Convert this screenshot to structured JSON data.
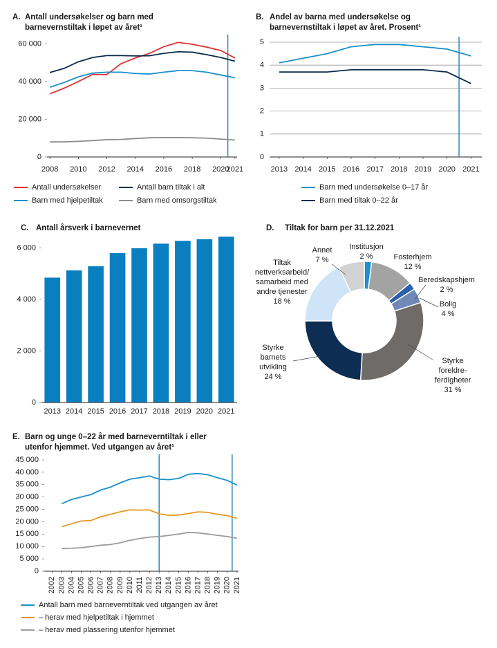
{
  "chart_data": [
    {
      "type": "line",
      "panel": "A.",
      "title": [
        "Antall undersøkelser og barn med",
        "barnevernstiltak i løpet av året¹"
      ],
      "x": [
        2008,
        2009,
        2010,
        2011,
        2012,
        2013,
        2014,
        2015,
        2016,
        2017,
        2018,
        2019,
        2020,
        2021
      ],
      "xlim": [
        2007.8,
        2021.15
      ],
      "xticks": [
        2008,
        2010,
        2012,
        2014,
        2016,
        2018,
        2020,
        2021
      ],
      "ylim": [
        0,
        62000
      ],
      "yticks": [
        0,
        {
          "value": 20000,
          "label": "20 000"
        },
        {
          "value": 40000,
          "label": "40 000"
        },
        {
          "value": 60000,
          "label": "60 000"
        }
      ],
      "grid": false,
      "vlines": [
        2020.5
      ],
      "vline_color": "#1f7fb5",
      "series": [
        {
          "name": "Antall undersøkelser",
          "color": "#e03131",
          "values": [
            33500,
            36500,
            40000,
            43800,
            43700,
            49500,
            52500,
            55000,
            58500,
            60800,
            59800,
            58300,
            56500,
            52500
          ]
        },
        {
          "name": "Antall barn tiltak i alt",
          "color": "#0b2a4a",
          "values": [
            44800,
            47000,
            50500,
            52800,
            53800,
            53800,
            53600,
            53700,
            55000,
            55800,
            55600,
            54300,
            52800,
            50800
          ]
        },
        {
          "name": "Barn med hjelpetiltak",
          "color": "#1a8fc9",
          "values": [
            37000,
            39500,
            42500,
            44500,
            45000,
            45000,
            44300,
            44000,
            45000,
            45800,
            45800,
            45000,
            43500,
            42000
          ]
        },
        {
          "name": "Barn med omsorgstiltak",
          "color": "#8c8c8c",
          "values": [
            8000,
            8000,
            8300,
            8700,
            9200,
            9300,
            9800,
            10200,
            10300,
            10300,
            10200,
            10000,
            9500,
            9000
          ]
        }
      ]
    },
    {
      "type": "line",
      "panel": "B.",
      "title": [
        "Andel av barna med undersøkelse og",
        "barnevernstiltak i løpet av året. Prosent¹"
      ],
      "x": [
        2013,
        2014,
        2015,
        2016,
        2017,
        2018,
        2019,
        2020,
        2021
      ],
      "xlim": [
        2012.6,
        2021.45
      ],
      "xticks": [
        2013,
        2014,
        2015,
        2016,
        2017,
        2018,
        2019,
        2020,
        2021
      ],
      "ylim": [
        0,
        5
      ],
      "yticks": [
        0,
        1,
        2,
        3,
        4,
        5
      ],
      "grid": true,
      "vlines": [
        2020.5
      ],
      "vline_color": "#1f7fb5",
      "series": [
        {
          "name": "Barn med undersøkelse 0–17 år",
          "color": "#1a8fc9",
          "values": [
            4.1,
            4.3,
            4.5,
            4.8,
            4.9,
            4.9,
            4.8,
            4.7,
            4.4
          ]
        },
        {
          "name": "Barn med tiltak 0–22 år",
          "color": "#0b2a4a",
          "values": [
            3.7,
            3.7,
            3.7,
            3.8,
            3.8,
            3.8,
            3.8,
            3.7,
            3.2
          ]
        }
      ]
    },
    {
      "type": "bar",
      "panel": "C.",
      "title": [
        "Antall årsverk i barnevernet"
      ],
      "categories": [
        "2013",
        "2014",
        "2015",
        "2016",
        "2017",
        "2018",
        "2019",
        "2020",
        "2021"
      ],
      "values": [
        4850,
        5130,
        5290,
        5800,
        5990,
        6170,
        6280,
        6340,
        6440
      ],
      "color": "#0a7fc0",
      "ylim": [
        0,
        6500
      ],
      "yticks": [
        0,
        {
          "value": 2000,
          "label": "2 000"
        },
        {
          "value": 4000,
          "label": "4 000"
        },
        {
          "value": 6000,
          "label": "6 000"
        }
      ],
      "grid": false
    },
    {
      "type": "donut",
      "panel": "D.",
      "title": [
        "Tiltak for barn per 31.12.2021"
      ],
      "categories": [
        [
          "Institusjon"
        ],
        [
          "Fosterhjem"
        ],
        [
          "Beredskapshjem"
        ],
        [
          "Bolig"
        ],
        [
          "Styrke",
          "foreldre-",
          "ferdigheter"
        ],
        [
          "Styrke",
          "barnets",
          "utvikling"
        ],
        [
          "Tiltak",
          "nettverksarbeid/",
          "samarbeid med",
          "andre tjenester"
        ],
        [
          "Annet"
        ]
      ],
      "values": [
        2,
        12,
        2,
        4,
        31,
        24,
        18,
        7
      ],
      "value_labels": [
        "2 %",
        "12 %",
        "2 %",
        "4 %",
        "31 %",
        "24 %",
        "18 %",
        "7 %"
      ],
      "colors": [
        "#1f8fd0",
        "#a3a3a3",
        "#2a5fae",
        "#7088b8",
        "#6f6b68",
        "#0d2d52",
        "#cfe5f7",
        "#d2d2d2"
      ]
    },
    {
      "type": "line",
      "panel": "E.",
      "title": [
        "Barn og unge 0–22 år med barneverntiltak i eller",
        "utenfor hjemmet. Ved utgangen av året¹"
      ],
      "x": [
        2002,
        2003,
        2004,
        2005,
        2006,
        2007,
        2008,
        2009,
        2010,
        2011,
        2012,
        2013,
        2014,
        2015,
        2016,
        2017,
        2018,
        2019,
        2020,
        2021
      ],
      "xlim": [
        2001.2,
        2021.15
      ],
      "xticks": [
        2002,
        2003,
        2004,
        2005,
        2006,
        2007,
        2008,
        2009,
        2010,
        2011,
        2012,
        2013,
        2014,
        2015,
        2016,
        2017,
        2018,
        2019,
        2020,
        2021
      ],
      "ylim": [
        0,
        45000
      ],
      "yticks": [
        0,
        {
          "value": 5000,
          "label": "5 000"
        },
        {
          "value": 10000,
          "label": "10 000"
        },
        {
          "value": 15000,
          "label": "15 000"
        },
        {
          "value": 20000,
          "label": "20 000"
        },
        {
          "value": 25000,
          "label": "25 000"
        },
        {
          "value": 30000,
          "label": "30 000"
        },
        {
          "value": 35000,
          "label": "35 000"
        },
        {
          "value": 40000,
          "label": "40 000"
        },
        {
          "value": 45000,
          "label": "45 000"
        }
      ],
      "grid": false,
      "vlines": [
        2013,
        2020.5
      ],
      "vline_color": "#1f7fb5",
      "series": [
        {
          "name": "Antall barn med barneverntiltak ved utgangen av året",
          "color": "#1a8fc9",
          "values": [
            null,
            27300,
            29000,
            30000,
            31000,
            32800,
            34000,
            35700,
            37200,
            37800,
            38500,
            37200,
            37000,
            37500,
            39200,
            39500,
            39000,
            37800,
            36700,
            34800
          ]
        },
        {
          "name": "– herav med hjelpetiltak i hjemmet",
          "color": "#e8961e",
          "values": [
            null,
            18000,
            19200,
            20300,
            20500,
            22000,
            23000,
            24000,
            24800,
            24700,
            24800,
            23200,
            22600,
            22700,
            23300,
            24000,
            23800,
            23000,
            22500,
            21400
          ]
        },
        {
          "name": "– herav med plassering utenfor hjemmet",
          "color": "#9a9a9a",
          "values": [
            null,
            9200,
            9300,
            9500,
            10000,
            10500,
            10800,
            11500,
            12500,
            13200,
            13800,
            14000,
            14500,
            15000,
            15700,
            15500,
            15000,
            14500,
            14000,
            13300
          ]
        }
      ]
    }
  ]
}
